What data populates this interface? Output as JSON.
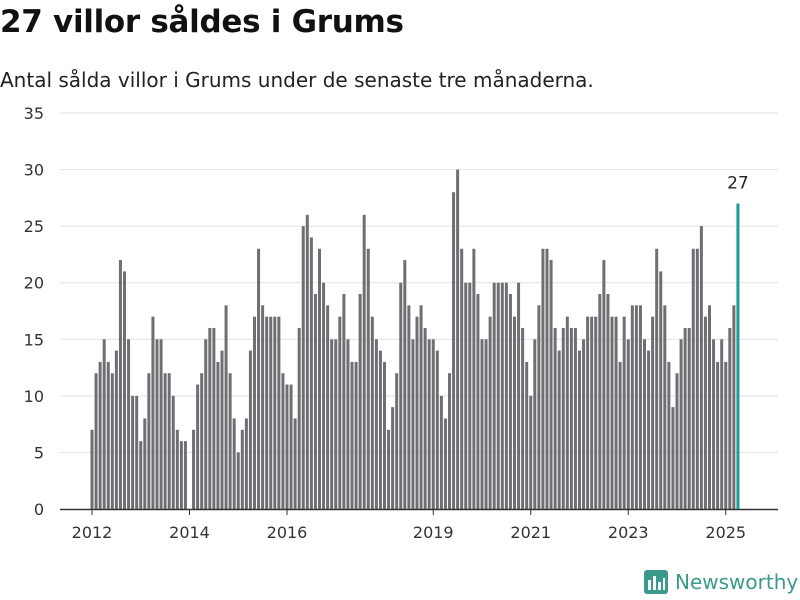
{
  "title": "27 villor såldes i Grums",
  "subtitle": "Antal sålda villor i Grums under de senaste tre månaderna.",
  "brand": {
    "name": "Newsworthy",
    "icon": "newsworthy-logo-icon"
  },
  "colors": {
    "bar": "#6f6e73",
    "highlight": "#159e93",
    "grid": "#e2e2e2",
    "axis": "#333333",
    "brand": "#3a9a8e"
  },
  "chart_data": {
    "type": "bar",
    "ylim": [
      0,
      35
    ],
    "yticks": [
      0,
      5,
      10,
      15,
      20,
      25,
      30,
      35
    ],
    "grid": true,
    "x_axis": "date",
    "xticks": [
      {
        "label": "2012",
        "date": "2012-01"
      },
      {
        "label": "2014",
        "date": "2014-01"
      },
      {
        "label": "2016",
        "date": "2016-01"
      },
      {
        "label": "2019",
        "date": "2019-01"
      },
      {
        "label": "2021",
        "date": "2021-01"
      },
      {
        "label": "2023",
        "date": "2023-01"
      },
      {
        "label": "2025",
        "date": "2025-01"
      }
    ],
    "series": [
      {
        "start": "2012-01",
        "values": [
          7,
          12,
          13,
          15,
          13,
          12,
          14,
          22,
          21,
          15,
          10,
          10,
          6,
          8,
          12,
          17,
          15,
          15,
          12,
          12,
          10,
          7,
          6,
          6,
          0,
          7,
          11,
          12,
          15,
          16,
          16,
          13,
          14,
          18,
          12,
          8,
          5,
          7,
          8,
          14,
          17,
          23,
          18,
          17,
          17,
          17,
          17,
          12,
          11,
          11,
          8,
          16,
          25,
          26,
          24,
          19,
          23,
          20,
          18,
          15,
          15,
          17,
          19,
          15,
          13,
          13,
          19,
          26,
          23,
          17,
          15,
          14,
          13,
          7,
          9,
          12,
          20,
          22,
          18,
          15,
          17,
          18,
          16,
          15,
          15,
          14,
          10,
          8,
          12,
          28,
          30,
          23,
          20,
          20,
          23,
          19,
          15,
          15,
          17,
          20,
          20,
          20,
          20,
          19,
          17,
          20,
          16,
          13,
          10,
          15,
          18,
          23,
          23,
          22,
          16,
          14,
          16,
          17,
          16,
          16,
          14,
          15,
          17,
          17,
          17,
          19,
          22,
          19,
          17,
          17,
          13,
          17,
          15,
          18,
          18,
          18,
          15,
          14,
          17,
          23,
          21,
          18,
          13,
          9,
          12,
          15,
          16,
          16,
          23,
          23,
          25,
          17,
          18,
          15,
          13,
          15,
          13,
          16,
          18,
          27
        ]
      }
    ],
    "annotations": [
      {
        "date": "2025-04",
        "text": "27"
      }
    ]
  }
}
